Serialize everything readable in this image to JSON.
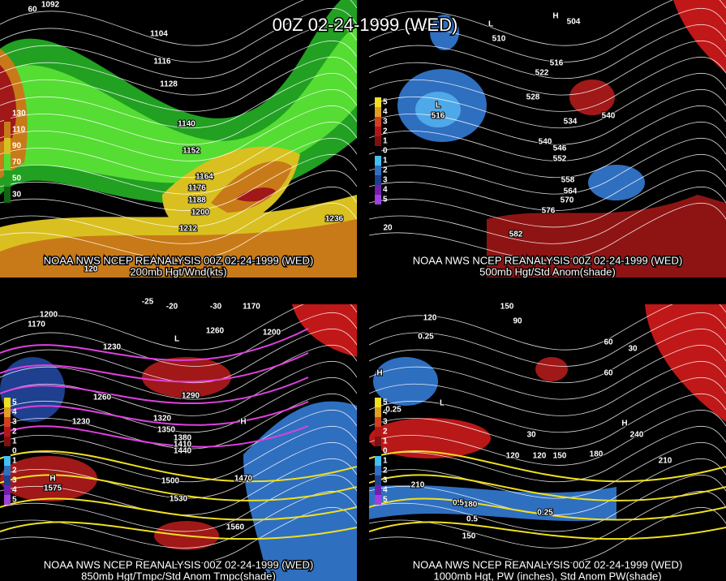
{
  "title": "00Z 02-24-1999 (WED)",
  "panels": [
    {
      "caption": [
        "NOAA NWS NCEP REANALYSIS 00Z 02-24-1999 (WED)",
        "200mb Hgt/Wnd(kts)"
      ],
      "colorbar_labels": [
        "130",
        "110",
        "90",
        "70",
        "50",
        "30"
      ],
      "contour_labels": [
        "1092",
        "1104",
        "1116",
        "1128",
        "1140",
        "1152",
        "1164",
        "1176",
        "1188",
        "1200",
        "1212",
        "1236",
        "60",
        "120"
      ]
    },
    {
      "caption": [
        "NOAA NWS NCEP REANALYSIS 00Z 02-24-1999 (WED)",
        "500mb Hgt/Std Anom(shade)"
      ],
      "colorbar_labels": [
        "5",
        "4",
        "3",
        "2",
        "1",
        "0",
        "1",
        "2",
        "3",
        "4",
        "5"
      ],
      "contour_labels": [
        "504",
        "510",
        "516",
        "522",
        "528",
        "534",
        "540",
        "546",
        "552",
        "558",
        "564",
        "570",
        "576",
        "582",
        "516",
        "540",
        "20",
        "L",
        "H",
        "L"
      ]
    },
    {
      "caption": [
        "NOAA NWS NCEP REANALYSIS 00Z 02-24-1999 (WED)",
        "850mb Hgt/Tmpc/Std Anom Tmpc(shade)"
      ],
      "colorbar_labels": [
        "5",
        "4",
        "3",
        "2",
        "1",
        "0",
        "1",
        "2",
        "3",
        "4",
        "5"
      ],
      "contour_labels": [
        "1170",
        "1200",
        "1230",
        "1260",
        "1290",
        "1320",
        "1350",
        "1380",
        "1410",
        "1440",
        "1470",
        "1500",
        "1530",
        "1560",
        "1575",
        "1200",
        "-25",
        "-20",
        "-30",
        "1170",
        "1230",
        "1260",
        "H",
        "H",
        "L"
      ]
    },
    {
      "caption": [
        "NOAA NWS NCEP REANALYSIS 00Z 02-24-1999 (WED)",
        "1000mb Hgt, PW (inches), Std Anom PW(shade)"
      ],
      "colorbar_labels": [
        "5",
        "4",
        "3",
        "2",
        "1",
        "0",
        "1",
        "2",
        "3",
        "4",
        "5"
      ],
      "contour_labels": [
        "150",
        "120",
        "90",
        "60",
        "30",
        "60",
        "120",
        "30",
        "0.25",
        "0.5",
        "0.25",
        "120",
        "150",
        "180",
        "210",
        "240",
        "210",
        "180",
        "150",
        "0.5",
        "0.25",
        "H",
        "L",
        "H"
      ]
    }
  ]
}
